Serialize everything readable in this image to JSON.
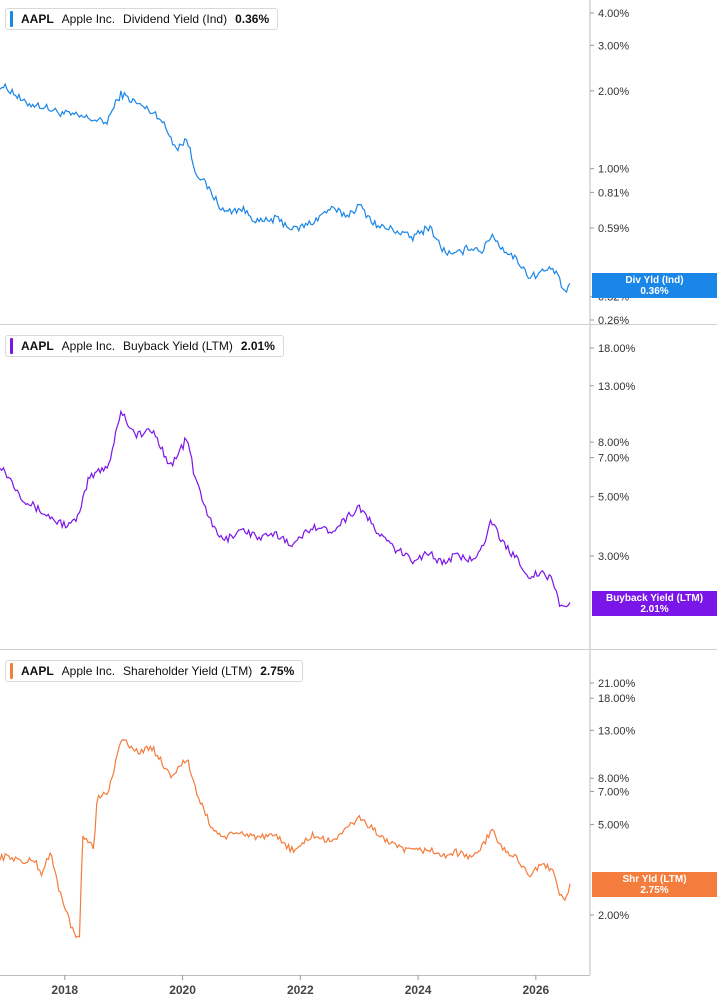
{
  "panels": [
    {
      "ticker": "AAPL",
      "company": "Apple Inc.",
      "metric": "Dividend Yield (Ind)",
      "value": "0.36%",
      "color": "#1a86e8",
      "tag_line1": "Div Yld (Ind)",
      "tag_line2": "0.36%",
      "yticks": [
        "4.00%",
        "3.00%",
        "2.00%",
        "1.00%",
        "0.81%",
        "0.59%",
        "0.32%",
        "0.26%"
      ]
    },
    {
      "ticker": "AAPL",
      "company": "Apple Inc.",
      "metric": "Buyback Yield (LTM)",
      "value": "2.01%",
      "color": "#7b16e8",
      "tag_line1": "Buyback Yield (LTM)",
      "tag_line2": "2.01%",
      "yticks": [
        "18.00%",
        "13.00%",
        "8.00%",
        "7.00%",
        "5.00%",
        "3.00%"
      ]
    },
    {
      "ticker": "AAPL",
      "company": "Apple Inc.",
      "metric": "Shareholder Yield (LTM)",
      "value": "2.75%",
      "color": "#f47c3c",
      "tag_line1": "Shr Yld (LTM)",
      "tag_line2": "2.75%",
      "yticks": [
        "21.00%",
        "18.00%",
        "13.00%",
        "8.00%",
        "7.00%",
        "5.00%",
        "2.00%"
      ]
    }
  ],
  "x_axis_labels": [
    "2018",
    "2020",
    "2022",
    "2024",
    "2026"
  ],
  "chart_data": [
    {
      "type": "line",
      "title": "AAPL Apple Inc. Dividend Yield (Ind) 0.36%",
      "y_scale": "log",
      "ylim": [
        0.25,
        4.5
      ],
      "x_label_ticks": [
        "2018",
        "2020",
        "2022",
        "2024",
        "2026"
      ],
      "series": [
        {
          "name": "Dividend Yield (Ind)",
          "x": [
            2016.9,
            2017.1,
            2017.3,
            2017.6,
            2017.9,
            2018.2,
            2018.5,
            2018.7,
            2018.95,
            2019.3,
            2019.6,
            2019.9,
            2020.08,
            2020.2,
            2020.5,
            2020.7,
            2021.0,
            2021.3,
            2021.6,
            2021.9,
            2022.2,
            2022.5,
            2022.8,
            2023.0,
            2023.3,
            2023.6,
            2023.9,
            2024.2,
            2024.4,
            2024.6,
            2024.9,
            2025.1,
            2025.25,
            2025.4,
            2025.7,
            2025.9,
            2026.1,
            2026.3,
            2026.5,
            2026.58
          ],
          "values": [
            2.1,
            2.0,
            1.8,
            1.75,
            1.65,
            1.6,
            1.55,
            1.5,
            1.95,
            1.75,
            1.6,
            1.2,
            1.3,
            1.0,
            0.8,
            0.68,
            0.7,
            0.62,
            0.64,
            0.58,
            0.62,
            0.7,
            0.66,
            0.72,
            0.6,
            0.58,
            0.54,
            0.6,
            0.49,
            0.46,
            0.5,
            0.48,
            0.56,
            0.5,
            0.44,
            0.38,
            0.4,
            0.41,
            0.33,
            0.36
          ]
        }
      ]
    },
    {
      "type": "line",
      "title": "AAPL Apple Inc. Buyback Yield (LTM) 2.01%",
      "y_scale": "log",
      "ylim": [
        1.8,
        20
      ],
      "x_label_ticks": [
        "2018",
        "2020",
        "2022",
        "2024",
        "2026"
      ],
      "series": [
        {
          "name": "Buyback Yield (LTM)",
          "x": [
            2016.9,
            2017.1,
            2017.3,
            2017.6,
            2017.9,
            2018.1,
            2018.25,
            2018.4,
            2018.55,
            2018.75,
            2018.95,
            2019.2,
            2019.5,
            2019.8,
            2020.08,
            2020.2,
            2020.5,
            2020.7,
            2021.0,
            2021.3,
            2021.6,
            2021.9,
            2022.2,
            2022.5,
            2022.8,
            2023.0,
            2023.3,
            2023.6,
            2023.9,
            2024.2,
            2024.4,
            2024.6,
            2024.9,
            2025.1,
            2025.25,
            2025.4,
            2025.7,
            2025.9,
            2026.1,
            2026.3,
            2026.4,
            2026.5,
            2026.58
          ],
          "values": [
            6.6,
            5.7,
            4.9,
            4.4,
            4.0,
            3.9,
            4.3,
            5.8,
            6.2,
            6.6,
            10.5,
            8.5,
            8.8,
            6.5,
            8.3,
            6.0,
            3.9,
            3.4,
            3.8,
            3.5,
            3.6,
            3.3,
            3.9,
            3.7,
            4.2,
            4.6,
            3.7,
            3.2,
            2.9,
            3.1,
            2.8,
            3.0,
            2.9,
            3.3,
            4.1,
            3.4,
            2.9,
            2.5,
            2.6,
            2.4,
            2.0,
            1.9,
            2.01
          ]
        }
      ]
    },
    {
      "type": "line",
      "title": "AAPL Apple Inc. Shareholder Yield (LTM) 2.75%",
      "y_scale": "log",
      "ylim": [
        1.6,
        24
      ],
      "x_label_ticks": [
        "2018",
        "2020",
        "2022",
        "2024",
        "2026"
      ],
      "series": [
        {
          "name": "Shareholder Yield (LTM)",
          "x": [
            2016.9,
            2017.1,
            2017.3,
            2017.5,
            2017.6,
            2017.75,
            2017.9,
            2018.0,
            2018.05,
            2018.15,
            2018.25,
            2018.3,
            2018.5,
            2018.55,
            2018.75,
            2018.95,
            2019.2,
            2019.5,
            2019.8,
            2020.08,
            2020.2,
            2020.5,
            2020.7,
            2021.0,
            2021.3,
            2021.6,
            2021.9,
            2022.2,
            2022.5,
            2022.8,
            2023.0,
            2023.3,
            2023.6,
            2023.9,
            2024.2,
            2024.4,
            2024.6,
            2024.9,
            2025.1,
            2025.25,
            2025.4,
            2025.7,
            2025.9,
            2026.1,
            2026.3,
            2026.4,
            2026.5,
            2026.58
          ],
          "values": [
            3.6,
            3.6,
            3.4,
            3.5,
            3.0,
            3.8,
            2.6,
            2.2,
            2.0,
            1.65,
            1.55,
            4.5,
            4.0,
            6.5,
            7.0,
            12.0,
            10.5,
            10.8,
            8.2,
            9.8,
            7.3,
            4.8,
            4.4,
            4.6,
            4.4,
            4.4,
            3.8,
            4.5,
            4.2,
            4.8,
            5.4,
            4.6,
            4.0,
            3.8,
            3.9,
            3.6,
            3.8,
            3.6,
            4.0,
            4.8,
            4.0,
            3.5,
            3.0,
            3.3,
            3.2,
            2.5,
            2.25,
            2.75
          ]
        }
      ]
    }
  ]
}
